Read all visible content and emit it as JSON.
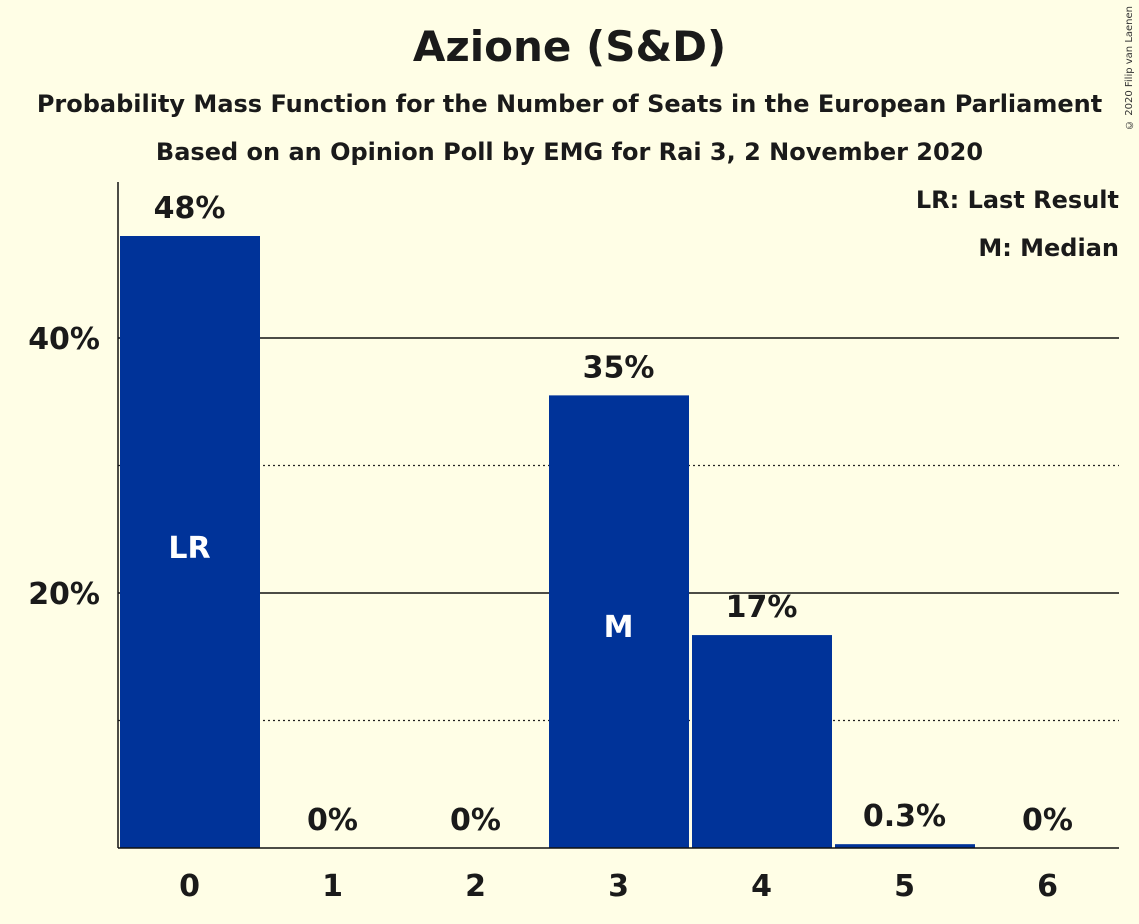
{
  "title": "Azione (S&D)",
  "subtitle": "Probability Mass Function for the Number of Seats in the European Parliament",
  "subtitle2": "Based on an Opinion Poll by EMG for Rai 3, 2 November 2020",
  "copyright": "© 2020 Filip van Laenen",
  "legend": {
    "last_result": "LR: Last Result",
    "median": "M: Median"
  },
  "colors": {
    "bar": "#003399",
    "background": "#FFFEE6"
  },
  "chart_data": {
    "type": "bar",
    "categories": [
      "0",
      "1",
      "2",
      "3",
      "4",
      "5",
      "6"
    ],
    "values": [
      48,
      0,
      0,
      35.5,
      16.7,
      0.3,
      0
    ],
    "labels": [
      "48%",
      "0%",
      "0%",
      "35%",
      "17%",
      "0.3%",
      "0%"
    ],
    "markers": {
      "0": "LR",
      "3": "M"
    },
    "yticks": [
      20,
      40
    ],
    "ytick_labels": [
      "20%",
      "40%"
    ],
    "minor_gridlines": [
      10,
      30
    ],
    "ylim": [
      0,
      52
    ],
    "xlabel": "",
    "ylabel": ""
  }
}
